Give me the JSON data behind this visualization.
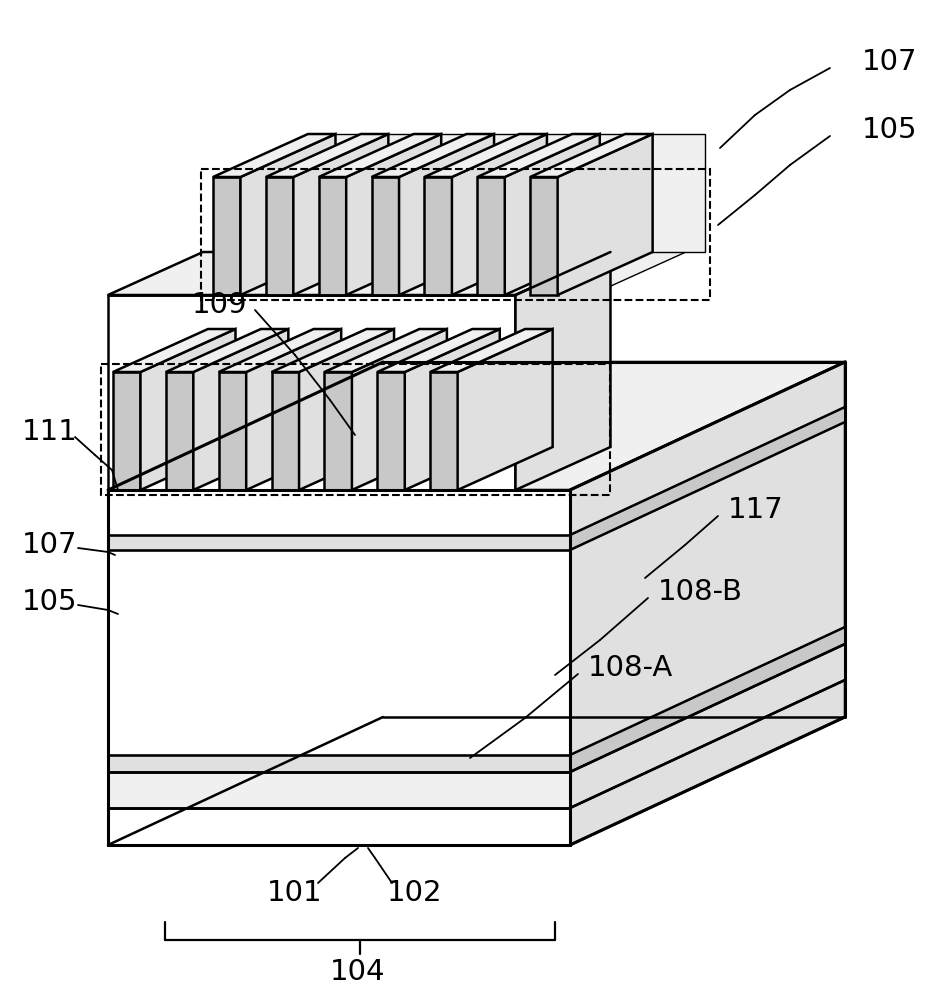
{
  "fig_width": 9.44,
  "fig_height": 10.0,
  "bg_color": "#ffffff",
  "line_color": "#000000",
  "fill_light": "#e0e0e0",
  "fill_lighter": "#f0f0f0",
  "fill_mid": "#c8c8c8",
  "fill_dark": "#a8a8a8",
  "fill_white": "#ffffff",
  "labels": {
    "107_top": "107",
    "105_top": "105",
    "109": "109",
    "111": "111",
    "107_bot": "107",
    "105_bot": "105",
    "117": "117",
    "108B": "108-B",
    "108A": "108-A",
    "101": "101",
    "102": "102",
    "104": "104"
  }
}
